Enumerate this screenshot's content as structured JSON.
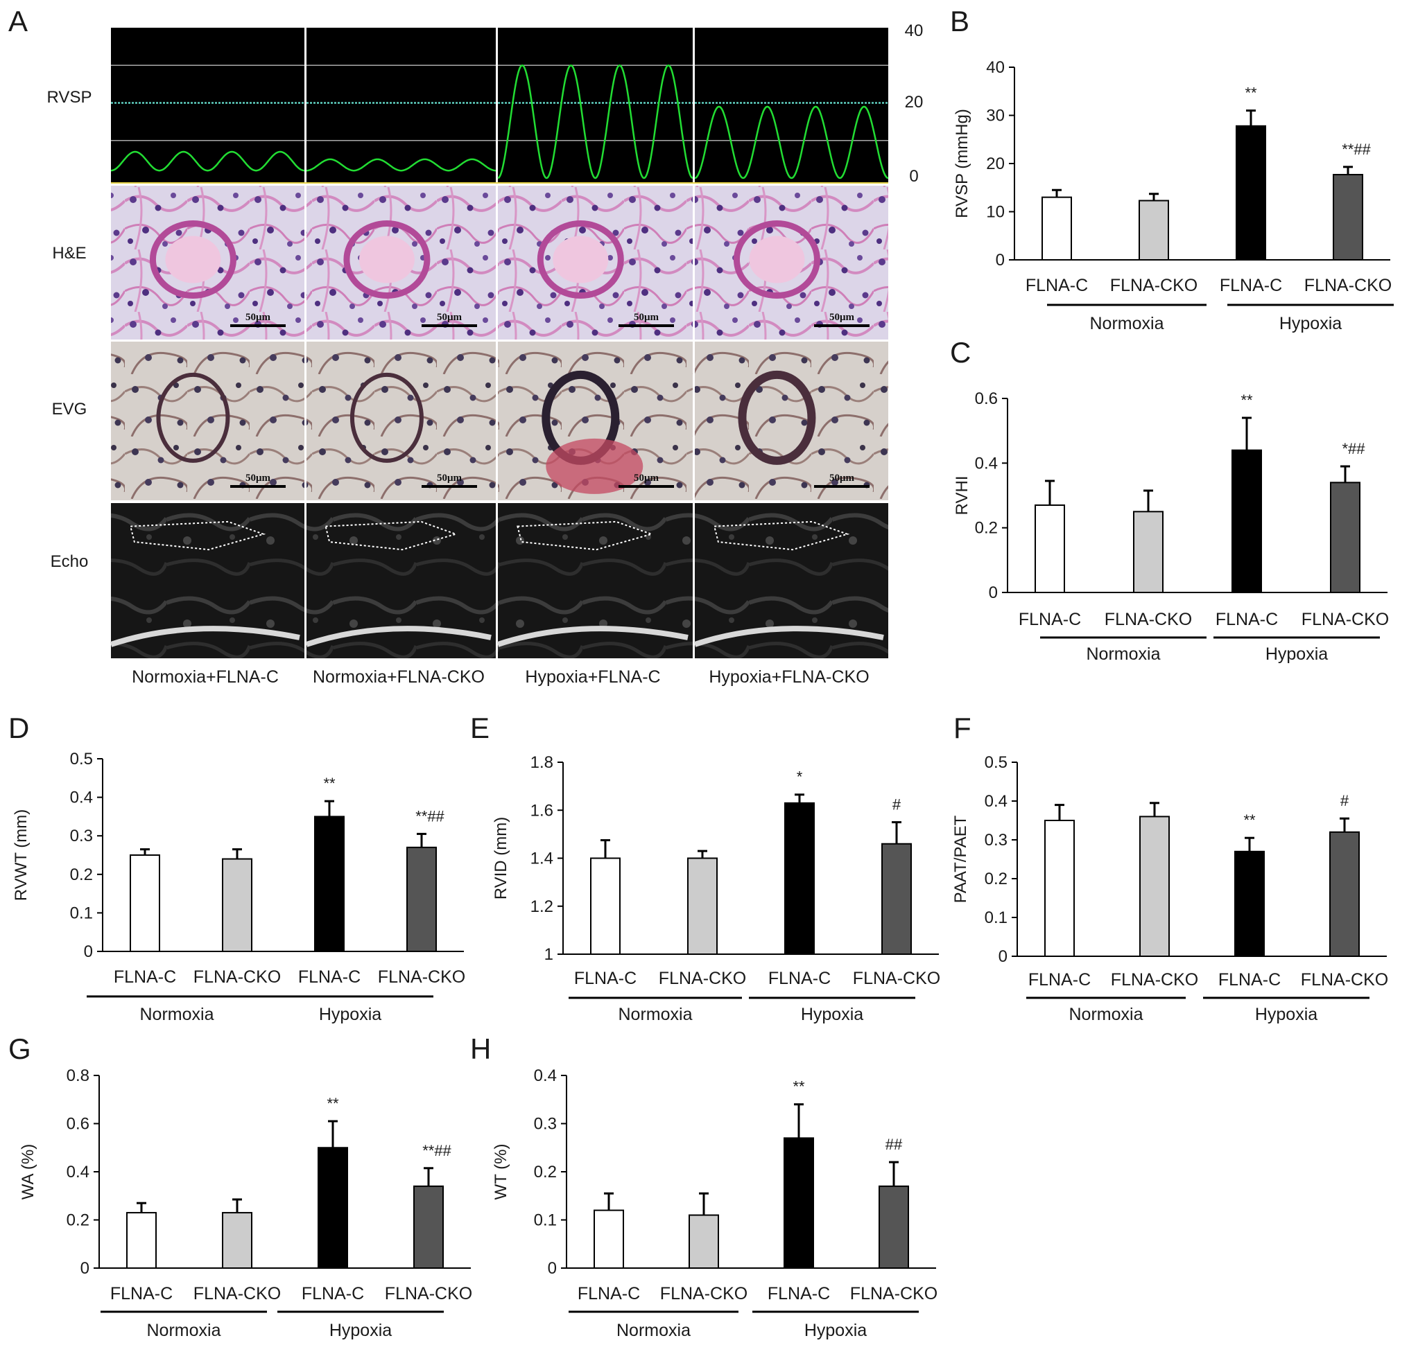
{
  "panel_a": {
    "letter": "A",
    "row_labels": [
      "RVSP",
      "H&E",
      "EVG",
      "Echo"
    ],
    "column_labels": [
      "Normoxia+FLNA-C",
      "Normoxia+FLNA-CKO",
      "Hypoxia+FLNA-C",
      "Hypoxia+FLNA-CKO"
    ],
    "rvsp_scale_ticks": [
      "40",
      "20",
      "0"
    ],
    "rvsp_peak_values": [
      7,
      5,
      30,
      19
    ],
    "rvsp_line_color": "#22dd33",
    "scale_bar_label": "50μm"
  },
  "chart_data": [
    {
      "letter": "B",
      "type": "bar",
      "ylabel": "RVSP (mmHg)",
      "ylim": [
        0,
        40
      ],
      "yticks": [
        "0",
        "10",
        "20",
        "30",
        "40"
      ],
      "categories": [
        "FLNA-C",
        "FLNA-CKO",
        "FLNA-C",
        "FLNA-CKO"
      ],
      "groups": [
        "Normoxia",
        "Hypoxia"
      ],
      "values": [
        13,
        12.3,
        27.8,
        17.7
      ],
      "errors": [
        1.5,
        1.4,
        3.2,
        1.6
      ],
      "significance": [
        "",
        "",
        "**",
        "**##"
      ]
    },
    {
      "letter": "C",
      "type": "bar",
      "ylabel": "RVHI",
      "ylim": [
        0,
        0.6
      ],
      "yticks": [
        "0",
        "0.2",
        "0.4",
        "0.6"
      ],
      "categories": [
        "FLNA-C",
        "FLNA-CKO",
        "FLNA-C",
        "FLNA-CKO"
      ],
      "groups": [
        "Normoxia",
        "Hypoxia"
      ],
      "values": [
        0.27,
        0.25,
        0.44,
        0.34
      ],
      "errors": [
        0.075,
        0.065,
        0.1,
        0.05
      ],
      "significance": [
        "",
        "",
        "**",
        "*##"
      ]
    },
    {
      "letter": "D",
      "type": "bar",
      "ylabel": "RVWT (mm)",
      "ylim": [
        0,
        0.5
      ],
      "yticks": [
        "0",
        "0.1",
        "0.2",
        "0.3",
        "0.4",
        "0.5"
      ],
      "categories": [
        "FLNA-C",
        "FLNA-CKO",
        "FLNA-C",
        "FLNA-CKO"
      ],
      "groups": [
        "Normoxia",
        "Hypoxia"
      ],
      "values": [
        0.25,
        0.24,
        0.35,
        0.27
      ],
      "errors": [
        0.015,
        0.025,
        0.04,
        0.035
      ],
      "significance": [
        "",
        "",
        "**",
        "**##"
      ]
    },
    {
      "letter": "E",
      "type": "bar",
      "ylabel": "RVID (mm)",
      "ylim": [
        1,
        1.8
      ],
      "yticks": [
        "1",
        "1.2",
        "1.4",
        "1.6",
        "1.8"
      ],
      "categories": [
        "FLNA-C",
        "FLNA-CKO",
        "FLNA-C",
        "FLNA-CKO"
      ],
      "groups": [
        "Normoxia",
        "Hypoxia"
      ],
      "values": [
        1.4,
        1.4,
        1.63,
        1.46
      ],
      "errors": [
        0.075,
        0.03,
        0.035,
        0.09
      ],
      "significance": [
        "",
        "",
        "*",
        "#"
      ]
    },
    {
      "letter": "F",
      "type": "bar",
      "ylabel": "PAAT/PAET",
      "ylim": [
        0,
        0.5
      ],
      "yticks": [
        "0",
        "0.1",
        "0.2",
        "0.3",
        "0.4",
        "0.5"
      ],
      "categories": [
        "FLNA-C",
        "FLNA-CKO",
        "FLNA-C",
        "FLNA-CKO"
      ],
      "groups": [
        "Normoxia",
        "Hypoxia"
      ],
      "values": [
        0.35,
        0.36,
        0.27,
        0.32
      ],
      "errors": [
        0.04,
        0.035,
        0.035,
        0.035
      ],
      "significance": [
        "",
        "",
        "**",
        "#"
      ]
    },
    {
      "letter": "G",
      "type": "bar",
      "ylabel": "WA (%)",
      "ylim": [
        0,
        0.8
      ],
      "yticks": [
        "0",
        "0.2",
        "0.4",
        "0.6",
        "0.8"
      ],
      "categories": [
        "FLNA-C",
        "FLNA-CKO",
        "FLNA-C",
        "FLNA-CKO"
      ],
      "groups": [
        "Normoxia",
        "Hypoxia"
      ],
      "values": [
        0.23,
        0.23,
        0.5,
        0.34
      ],
      "errors": [
        0.04,
        0.055,
        0.11,
        0.075
      ],
      "significance": [
        "",
        "",
        "**",
        "**##"
      ]
    },
    {
      "letter": "H",
      "type": "bar",
      "ylabel": "WT (%)",
      "ylim": [
        0,
        0.4
      ],
      "yticks": [
        "0",
        "0.1",
        "0.2",
        "0.3",
        "0.4"
      ],
      "categories": [
        "FLNA-C",
        "FLNA-CKO",
        "FLNA-C",
        "FLNA-CKO"
      ],
      "groups": [
        "Normoxia",
        "Hypoxia"
      ],
      "values": [
        0.12,
        0.11,
        0.27,
        0.17
      ],
      "errors": [
        0.035,
        0.045,
        0.07,
        0.05
      ],
      "significance": [
        "",
        "",
        "**",
        "##"
      ]
    }
  ],
  "colors": {
    "bar_fills": [
      "#ffffff",
      "#cccccc",
      "#000000",
      "#555555"
    ],
    "he_background": "#d9d3e6",
    "evg_background": "#d7d2ce",
    "echo_background": "#151515",
    "rvsp_background": "#000000"
  }
}
